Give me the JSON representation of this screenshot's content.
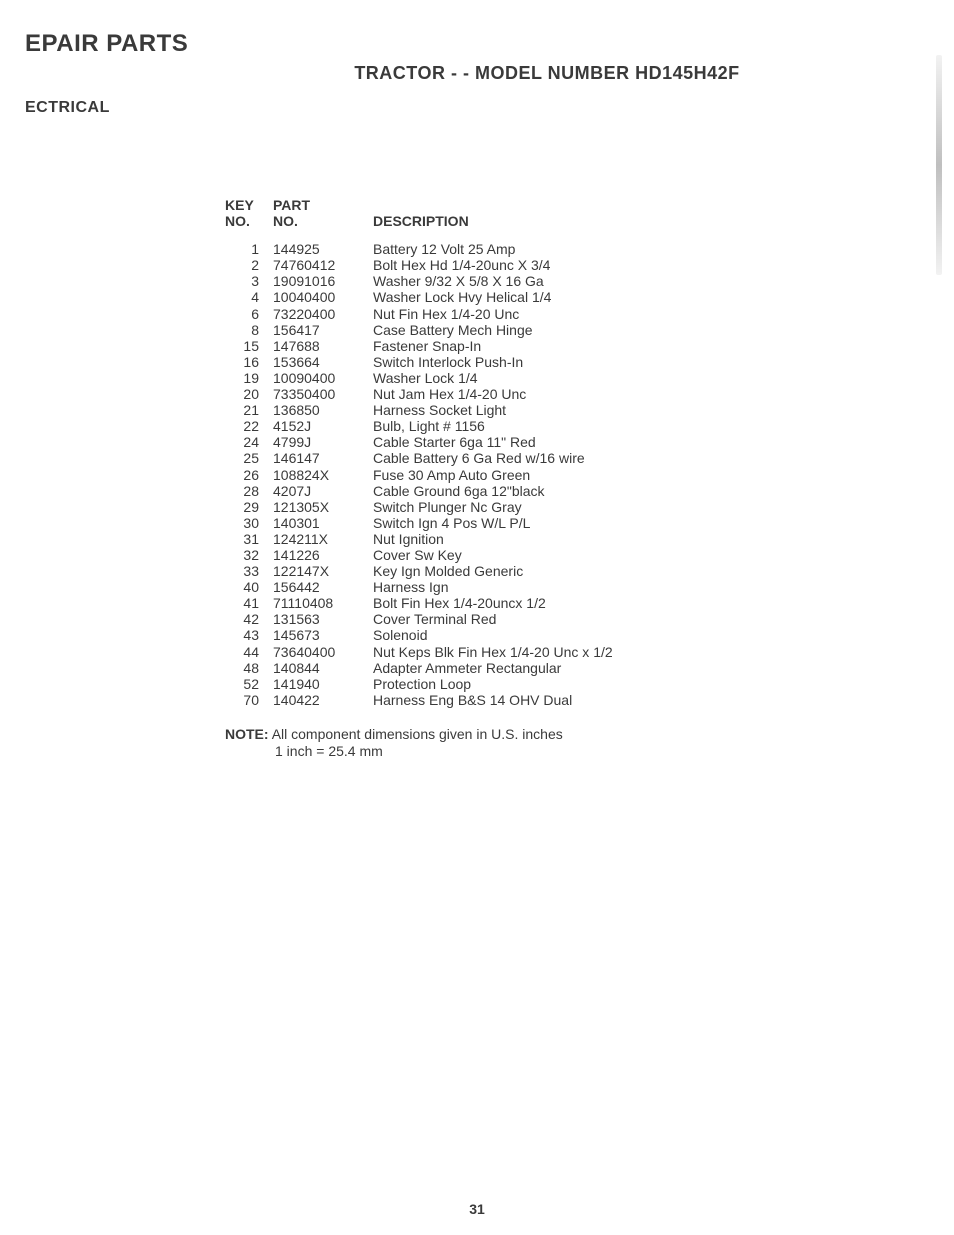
{
  "main_title": "EPAIR PARTS",
  "sub_title": "TRACTOR - - MODEL NUMBER HD145H42F",
  "section_title": "ECTRICAL",
  "headers": {
    "key_line1": "KEY",
    "key_line2": "NO.",
    "part_line1": "PART",
    "part_line2": "NO.",
    "desc": "DESCRIPTION"
  },
  "rows": [
    {
      "key": "1",
      "part": "144925",
      "desc": "Battery 12 Volt 25 Amp"
    },
    {
      "key": "2",
      "part": "74760412",
      "desc": "Bolt Hex Hd 1/4-20unc X 3/4"
    },
    {
      "key": "3",
      "part": "19091016",
      "desc": "Washer 9/32 X 5/8 X 16 Ga"
    },
    {
      "key": "4",
      "part": "10040400",
      "desc": "Washer Lock Hvy Helical 1/4"
    },
    {
      "key": "6",
      "part": "73220400",
      "desc": "Nut Fin Hex 1/4-20 Unc"
    },
    {
      "key": "8",
      "part": "156417",
      "desc": "Case Battery Mech Hinge"
    },
    {
      "key": "15",
      "part": "147688",
      "desc": "Fastener Snap-In"
    },
    {
      "key": "16",
      "part": "153664",
      "desc": "Switch Interlock Push-In"
    },
    {
      "key": "19",
      "part": "10090400",
      "desc": "Washer Lock 1/4"
    },
    {
      "key": "20",
      "part": "73350400",
      "desc": "Nut Jam Hex 1/4-20 Unc"
    },
    {
      "key": "21",
      "part": "136850",
      "desc": "Harness Socket Light"
    },
    {
      "key": "22",
      "part": "4152J",
      "desc": "Bulb, Light # 1156"
    },
    {
      "key": "24",
      "part": "4799J",
      "desc": "Cable Starter 6ga 11\" Red"
    },
    {
      "key": "25",
      "part": "146147",
      "desc": "Cable Battery 6 Ga  Red w/16 wire"
    },
    {
      "key": "26",
      "part": "108824X",
      "desc": "Fuse 30 Amp Auto Green"
    },
    {
      "key": "28",
      "part": "4207J",
      "desc": "Cable Ground 6ga 12\"black"
    },
    {
      "key": "29",
      "part": "121305X",
      "desc": "Switch Plunger Nc Gray"
    },
    {
      "key": "30",
      "part": "140301",
      "desc": "Switch Ign 4 Pos W/L P/L"
    },
    {
      "key": "31",
      "part": "124211X",
      "desc": "Nut Ignition"
    },
    {
      "key": "32",
      "part": "141226",
      "desc": "Cover Sw Key"
    },
    {
      "key": "33",
      "part": "122147X",
      "desc": "Key Ign Molded Generic"
    },
    {
      "key": "40",
      "part": "156442",
      "desc": "Harness Ign"
    },
    {
      "key": "41",
      "part": "71110408",
      "desc": "Bolt Fin Hex 1/4-20uncx 1/2"
    },
    {
      "key": "42",
      "part": "131563",
      "desc": "Cover Terminal Red"
    },
    {
      "key": "43",
      "part": "145673",
      "desc": "Solenoid"
    },
    {
      "key": "44",
      "part": "73640400",
      "desc": "Nut Keps Blk Fin Hex 1/4-20 Unc x 1/2"
    },
    {
      "key": "48",
      "part": "140844",
      "desc": "Adapter Ammeter Rectangular"
    },
    {
      "key": "52",
      "part": "141940",
      "desc": "Protection Loop"
    },
    {
      "key": "70",
      "part": "140422",
      "desc": "Harness Eng B&S 14 OHV Dual"
    }
  ],
  "note": {
    "label": "NOTE:",
    "line1": "All component dimensions given in U.S. inches",
    "line2": "1 inch = 25.4 mm"
  },
  "page_number": "31"
}
